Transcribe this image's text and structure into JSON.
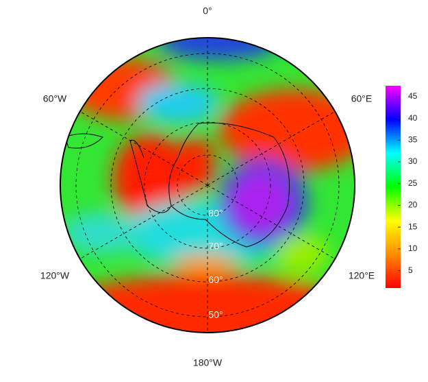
{
  "map": {
    "longitude_labels": [
      "0°",
      "60°E",
      "120°E",
      "180°W",
      "120°W",
      "60°W"
    ],
    "latitude_labels": [
      "80°",
      "70°",
      "60°",
      "50°"
    ]
  },
  "colorbar": {
    "range": [
      1,
      47.5
    ],
    "ticks": [
      5,
      10,
      15,
      20,
      25,
      30,
      35,
      40,
      45
    ],
    "colors": [
      "#ff0000",
      "#ff8c00",
      "#ffff00",
      "#00ff00",
      "#00ffff",
      "#0000ff",
      "#ff00ff"
    ]
  }
}
